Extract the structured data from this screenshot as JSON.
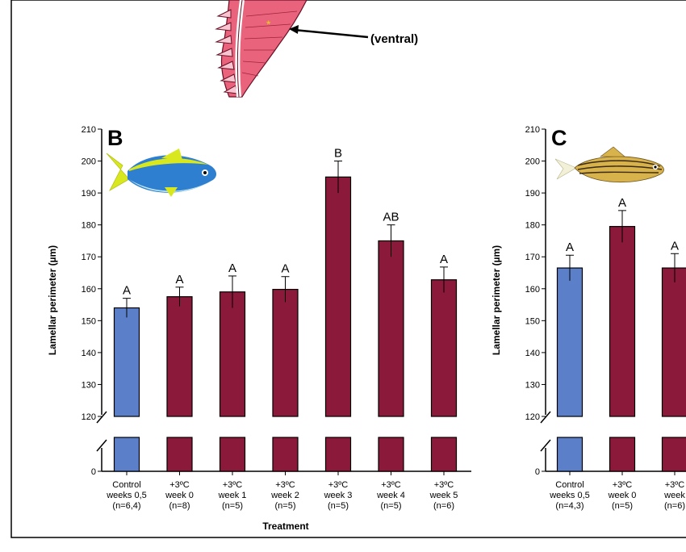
{
  "colors": {
    "control": "#5b7fc9",
    "treatment": "#8b1a3a",
    "axis": "#000000"
  },
  "top_annotation": {
    "label": "(ventral)",
    "icon": "gill-filament-icon"
  },
  "chart_data": [
    {
      "type": "bar",
      "panel": "B",
      "icon": "yellowfin-fish-icon",
      "ylabel": "Lamellar perimeter (µm)",
      "xlabel": "Treatment",
      "ylim": [
        120,
        210
      ],
      "yticks": [
        "0",
        "120",
        "130",
        "140",
        "150",
        "160",
        "170",
        "180",
        "190",
        "200",
        "210"
      ],
      "axis_break": true,
      "categories": [
        [
          "Control",
          "weeks 0,5",
          "(n=6,4)"
        ],
        [
          "+3ºC",
          "week 0",
          "(n=8)"
        ],
        [
          "+3ºC",
          "week 1",
          "(n=5)"
        ],
        [
          "+3ºC",
          "week 2",
          "(n=5)"
        ],
        [
          "+3ºC",
          "week 3",
          "(n=5)"
        ],
        [
          "+3ºC",
          "week 4",
          "(n=5)"
        ],
        [
          "+3ºC",
          "week 5",
          "(n=6)"
        ]
      ],
      "values": [
        154,
        157.5,
        159,
        159.8,
        195,
        175,
        162.8
      ],
      "errors": [
        3,
        3,
        5,
        4,
        5,
        5,
        4
      ],
      "labels": [
        "A",
        "A",
        "A",
        "A",
        "B",
        "AB",
        "A"
      ],
      "series_colors": [
        "control",
        "treatment",
        "treatment",
        "treatment",
        "treatment",
        "treatment",
        "treatment"
      ]
    },
    {
      "type": "bar",
      "panel": "C",
      "icon": "cardinalfish-icon",
      "ylabel": "Lamellar perimeter (µm)",
      "xlabel": "",
      "ylim": [
        120,
        210
      ],
      "yticks": [
        "0",
        "120",
        "130",
        "140",
        "150",
        "160",
        "170",
        "180",
        "190",
        "200",
        "210"
      ],
      "axis_break": true,
      "categories": [
        [
          "Control",
          "weeks 0,5",
          "(n=4,3)"
        ],
        [
          "+3ºC",
          "week 0",
          "(n=5)"
        ],
        [
          "+3ºC",
          "week",
          "(n=6)"
        ]
      ],
      "values": [
        166.5,
        179.5,
        166.5
      ],
      "errors": [
        4,
        5,
        4.5
      ],
      "labels": [
        "A",
        "A",
        "A"
      ],
      "series_colors": [
        "control",
        "treatment",
        "treatment"
      ]
    }
  ]
}
